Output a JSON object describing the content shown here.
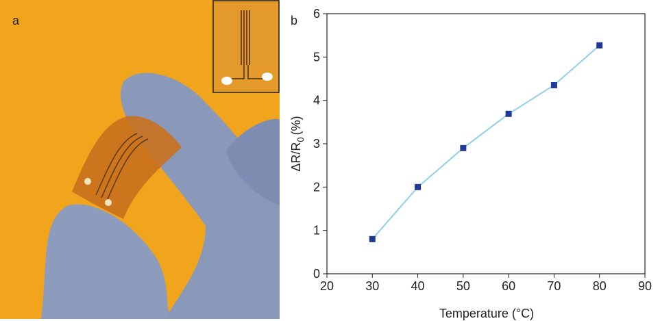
{
  "panel_labels": [
    "a",
    "b"
  ],
  "chart_data": {
    "type": "line",
    "x_label": "Temperature (°C)",
    "y_label": {
      "main": "ΔR/R",
      "sub": "0",
      "unit": "(%)"
    },
    "x": [
      30,
      40,
      50,
      60,
      70,
      80
    ],
    "series": [
      {
        "color": "#8fd0ea",
        "marker_color": "#1f3b93",
        "values": [
          0.8,
          2.0,
          2.9,
          3.69,
          4.35,
          5.27
        ]
      }
    ],
    "xlim": [
      20,
      90
    ],
    "xticks": [
      20,
      30,
      40,
      50,
      60,
      70,
      80,
      90
    ],
    "ylim": [
      0,
      6
    ],
    "yticks": [
      0,
      1,
      2,
      3,
      4,
      5,
      6
    ],
    "grid": false
  }
}
